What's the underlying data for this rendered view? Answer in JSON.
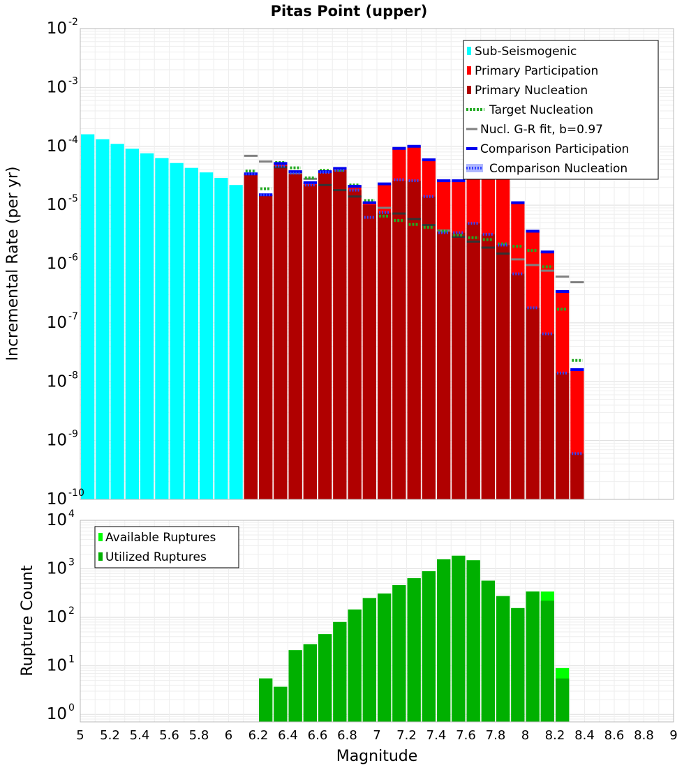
{
  "colors": {
    "sub_seismogenic": "#00ffff",
    "primary_participation": "#ff0000",
    "primary_nucleation": "#b00000",
    "target_nucleation": "#22aa22",
    "gr_fit": "#808080",
    "comparison_participation": "#0000ee",
    "comparison_nucleation": "#3344ff",
    "available_ruptures": "#00ff00",
    "utilized_ruptures": "#00b000"
  },
  "chart_data": [
    {
      "type": "bar",
      "title": "Pitas Point (upper)",
      "xlabel": "Magnitude",
      "ylabel": "Incremental Rate (per yr)",
      "y_scale": "log",
      "xlim": [
        5,
        9
      ],
      "ylim": [
        1e-10,
        0.01
      ],
      "y_ticks": [
        {
          "base": "10",
          "exp": "-10",
          "value": 1e-10
        },
        {
          "base": "10",
          "exp": "-9",
          "value": 1e-09
        },
        {
          "base": "10",
          "exp": "-8",
          "value": 1e-08
        },
        {
          "base": "10",
          "exp": "-7",
          "value": 1e-07
        },
        {
          "base": "10",
          "exp": "-6",
          "value": 1e-06
        },
        {
          "base": "10",
          "exp": "-5",
          "value": 1e-05
        },
        {
          "base": "10",
          "exp": "-4",
          "value": 0.0001
        },
        {
          "base": "10",
          "exp": "-3",
          "value": 0.001
        },
        {
          "base": "10",
          "exp": "-2",
          "value": 0.01
        }
      ],
      "grid": true,
      "legend_position": "top-right",
      "legend": [
        {
          "label": "Sub-Seismogenic",
          "style": "box",
          "color_key": "sub_seismogenic"
        },
        {
          "label": "Primary Participation",
          "style": "box",
          "color_key": "primary_participation"
        },
        {
          "label": "Primary Nucleation",
          "style": "box",
          "color_key": "primary_nucleation"
        },
        {
          "label": "Target Nucleation",
          "style": "dots",
          "color_key": "target_nucleation"
        },
        {
          "label": "Nucl. G-R fit, b=0.97",
          "style": "line",
          "color_key": "gr_fit"
        },
        {
          "label": "Comparison Participation",
          "style": "thick",
          "color_key": "comparison_participation"
        },
        {
          "label": "Comparison Nucleation",
          "style": "dots-band",
          "color_key": "comparison_nucleation"
        }
      ],
      "series": [
        {
          "name": "Sub-Seismogenic",
          "x": [
            5.05,
            5.15,
            5.25,
            5.35,
            5.45,
            5.55,
            5.65,
            5.75,
            5.85,
            5.95,
            6.05
          ],
          "values": [
            0.00016,
            0.000132,
            0.00011,
            9.1e-05,
            7.6e-05,
            6.3e-05,
            5.2e-05,
            4.3e-05,
            3.6e-05,
            2.9e-05,
            2.2e-05
          ]
        },
        {
          "name": "Primary Participation",
          "x": [
            6.15,
            6.25,
            6.35,
            6.45,
            6.55,
            6.65,
            6.75,
            6.85,
            6.95,
            7.05,
            7.15,
            7.25,
            7.35,
            7.45,
            7.55,
            7.65,
            7.75,
            7.85,
            7.95,
            8.05,
            8.15,
            8.25,
            8.35
          ],
          "values": [
            3.4e-05,
            1.5e-05,
            5.1e-05,
            3.7e-05,
            2.4e-05,
            3.7e-05,
            4.2e-05,
            2.1e-05,
            1.1e-05,
            2.3e-05,
            9.2e-05,
            0.0001,
            5.9e-05,
            2.6e-05,
            2.6e-05,
            3.3e-05,
            3.1e-05,
            2.9e-05,
            1.1e-05,
            3.6e-06,
            1.6e-06,
            3.4e-07,
            1.6e-08
          ]
        },
        {
          "name": "Primary Nucleation",
          "x": [
            6.15,
            6.25,
            6.35,
            6.45,
            6.55,
            6.65,
            6.75,
            6.85,
            6.95,
            7.05,
            7.15,
            7.25,
            7.35,
            7.45,
            7.55,
            7.65,
            7.75,
            7.85,
            7.95,
            8.05,
            8.15,
            8.25,
            8.35
          ],
          "values": [
            3.4e-05,
            1.5e-05,
            4.6e-05,
            3.5e-05,
            2.2e-05,
            3.6e-05,
            3.9e-05,
            1.8e-05,
            1e-05,
            7.5e-06,
            2.6e-05,
            2.6e-05,
            1.4e-05,
            3.5e-06,
            3.4e-06,
            4.9e-06,
            3.2e-06,
            2.1e-06,
            6.8e-07,
            1.8e-07,
            6.5e-08,
            1.4e-08,
            6e-10
          ]
        },
        {
          "name": "Target Nucleation",
          "x": [
            6.15,
            6.25,
            6.35,
            6.45,
            6.55,
            6.65,
            6.75,
            6.85,
            6.95,
            7.05,
            7.15,
            7.25,
            7.35,
            7.45,
            7.55,
            7.65,
            7.75,
            7.85,
            7.95,
            8.05,
            8.15,
            8.25,
            8.35
          ],
          "values": [
            3.8e-05,
            1.9e-05,
            5.3e-05,
            4.3e-05,
            2.9e-05,
            3.9e-05,
            3.9e-05,
            2.2e-05,
            1.2e-05,
            6.5e-06,
            5.5e-06,
            4.7e-06,
            4.2e-06,
            3.6e-06,
            3.1e-06,
            2.8e-06,
            2.6e-06,
            2.2e-06,
            2e-06,
            1.7e-06,
            9e-07,
            1.7e-07,
            2.3e-08
          ]
        },
        {
          "name": "Nucl. G-R fit, b=0.97",
          "x": [
            6.15,
            6.25,
            6.35,
            6.45,
            6.55,
            6.65,
            6.75,
            6.85,
            6.95,
            7.05,
            7.15,
            7.25,
            7.35,
            7.45,
            7.55,
            7.65,
            7.75,
            7.85,
            7.95,
            8.05,
            8.15,
            8.25,
            8.35
          ],
          "values": [
            6.9e-05,
            5.5e-05,
            4.4e-05,
            3.5e-05,
            2.8e-05,
            2.2e-05,
            1.8e-05,
            1.4e-05,
            1.1e-05,
            9e-06,
            7.2e-06,
            5.8e-06,
            4.6e-06,
            3.7e-06,
            2.9e-06,
            2.4e-06,
            1.9e-06,
            1.5e-06,
            1.2e-06,
            9.6e-07,
            7.7e-07,
            6.1e-07,
            4.9e-07
          ]
        },
        {
          "name": "Comparison Participation",
          "x": [
            6.15,
            6.25,
            6.35,
            6.45,
            6.55,
            6.65,
            6.75,
            6.85,
            6.95,
            7.05,
            7.15,
            7.25,
            7.35,
            7.45,
            7.55,
            7.65,
            7.75,
            7.85,
            7.95,
            8.05,
            8.15,
            8.25,
            8.35
          ],
          "values": [
            3.4e-05,
            1.5e-05,
            5.1e-05,
            3.7e-05,
            2.4e-05,
            3.7e-05,
            4.2e-05,
            2.1e-05,
            1.1e-05,
            2.3e-05,
            9.2e-05,
            0.0001,
            5.9e-05,
            2.6e-05,
            2.6e-05,
            3.3e-05,
            3.1e-05,
            2.9e-05,
            1.1e-05,
            3.6e-06,
            1.6e-06,
            3.4e-07,
            1.6e-08
          ]
        },
        {
          "name": "Comparison Nucleation",
          "x": [
            6.15,
            6.25,
            6.35,
            6.45,
            6.55,
            6.65,
            6.75,
            6.85,
            6.95,
            7.05,
            7.15,
            7.25,
            7.35,
            7.45,
            7.55,
            7.65,
            7.75,
            7.85,
            7.95,
            8.05,
            8.15,
            8.25,
            8.35
          ],
          "values": [
            3.4e-05,
            1.5e-05,
            4.6e-05,
            3.5e-05,
            2.2e-05,
            3.6e-05,
            3.9e-05,
            1.8e-05,
            6.2e-06,
            7.5e-06,
            2.7e-05,
            2.6e-05,
            1.4e-05,
            3.4e-06,
            3.4e-06,
            4.9e-06,
            3.2e-06,
            2.1e-06,
            6.8e-07,
            1.8e-07,
            6.5e-08,
            1.4e-08,
            6e-10
          ]
        }
      ]
    },
    {
      "type": "bar",
      "xlabel": "Magnitude",
      "ylabel": "Rupture Count",
      "y_scale": "log",
      "xlim": [
        5,
        9
      ],
      "ylim": [
        0.7,
        10000
      ],
      "x_ticks": [
        "5",
        "5.2",
        "5.4",
        "5.6",
        "5.8",
        "6",
        "6.2",
        "6.4",
        "6.6",
        "6.8",
        "7",
        "7.2",
        "7.4",
        "7.6",
        "7.8",
        "8",
        "8.2",
        "8.4",
        "8.6",
        "8.8",
        "9"
      ],
      "y_ticks": [
        {
          "base": "10",
          "exp": "0",
          "value": 1
        },
        {
          "base": "10",
          "exp": "1",
          "value": 10
        },
        {
          "base": "10",
          "exp": "2",
          "value": 100
        },
        {
          "base": "10",
          "exp": "3",
          "value": 1000
        },
        {
          "base": "10",
          "exp": "4",
          "value": 10000
        }
      ],
      "grid": true,
      "legend_position": "top-left",
      "legend": [
        {
          "label": "Available Ruptures",
          "color_key": "available_ruptures"
        },
        {
          "label": "Utilized Ruptures",
          "color_key": "utilized_ruptures"
        }
      ],
      "series": [
        {
          "name": "Available Ruptures",
          "x": [
            6.25,
            6.35,
            6.45,
            6.55,
            6.65,
            6.75,
            6.85,
            6.95,
            7.05,
            7.15,
            7.25,
            7.35,
            7.45,
            7.55,
            7.65,
            7.75,
            7.85,
            7.95,
            8.05,
            8.15,
            8.25
          ],
          "values": [
            5.5,
            3.7,
            21,
            28,
            45,
            80,
            145,
            250,
            310,
            460,
            640,
            890,
            1570,
            1860,
            1500,
            570,
            275,
            155,
            340,
            340,
            9
          ]
        },
        {
          "name": "Utilized Ruptures",
          "x": [
            6.25,
            6.35,
            6.45,
            6.55,
            6.65,
            6.75,
            6.85,
            6.95,
            7.05,
            7.15,
            7.25,
            7.35,
            7.45,
            7.55,
            7.65,
            7.75,
            7.85,
            7.95,
            8.05,
            8.15,
            8.25
          ],
          "values": [
            5.5,
            3.7,
            21,
            28,
            45,
            80,
            145,
            250,
            310,
            460,
            640,
            890,
            1570,
            1860,
            1500,
            570,
            275,
            155,
            340,
            220,
            5.5
          ]
        }
      ]
    }
  ]
}
